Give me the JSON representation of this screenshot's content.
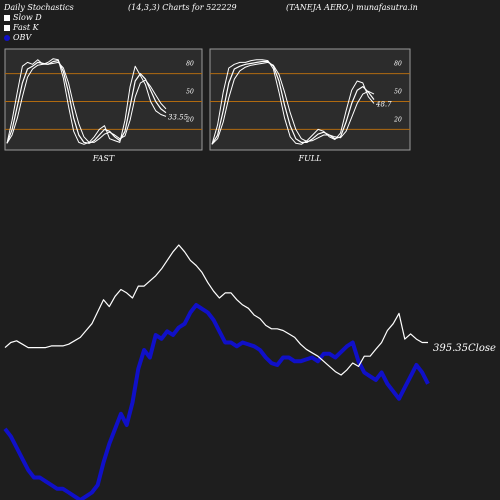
{
  "header": {
    "title": "Daily Stochastics",
    "params": "(14,3,3) Charts for 522229",
    "company": "(TANEJA AERO,) munafasutra.in"
  },
  "legend": [
    {
      "label": "Slow  D",
      "color": "#ffffff",
      "shape": "square"
    },
    {
      "label": "Fast K",
      "color": "#ffffff",
      "shape": "square"
    },
    {
      "label": "OBV",
      "color": "#1010c8",
      "shape": "circle"
    }
  ],
  "colors": {
    "background": "#1e1e1e",
    "panel": "#2c2c2c",
    "level_line": "#b06a10",
    "price": "#ffffff",
    "obv": "#1010c8"
  },
  "chart_data": [
    {
      "type": "line",
      "panel": "FAST",
      "title": "FAST",
      "ylim": [
        0,
        100
      ],
      "levels": [
        20,
        50,
        80
      ],
      "level_labels": [
        "20",
        "50",
        "80"
      ],
      "last_value_label": "33.55",
      "series": [
        {
          "values": [
            5,
            30,
            60,
            88,
            92,
            90,
            95,
            90,
            92,
            96,
            95,
            75,
            45,
            18,
            6,
            4,
            6,
            12,
            20,
            24,
            10,
            8,
            6,
            30,
            66,
            88,
            78,
            68,
            50,
            40,
            36,
            34
          ]
        },
        {
          "values": [
            5,
            20,
            45,
            70,
            85,
            88,
            92,
            91,
            90,
            93,
            94,
            82,
            60,
            32,
            14,
            6,
            5,
            8,
            14,
            20,
            18,
            12,
            8,
            18,
            45,
            72,
            80,
            74,
            62,
            50,
            42,
            38
          ]
        },
        {
          "values": [
            5,
            14,
            32,
            55,
            76,
            85,
            89,
            90,
            90,
            91,
            92,
            86,
            70,
            46,
            26,
            12,
            6,
            6,
            10,
            15,
            17,
            14,
            10,
            13,
            30,
            55,
            70,
            73,
            66,
            57,
            48,
            42
          ]
        }
      ]
    },
    {
      "type": "line",
      "panel": "FULL",
      "title": "FULL",
      "ylim": [
        0,
        100
      ],
      "levels": [
        20,
        50,
        80
      ],
      "level_labels": [
        "20",
        "50",
        "80"
      ],
      "last_value_label": "48.7",
      "series": [
        {
          "values": [
            4,
            25,
            60,
            86,
            90,
            92,
            92,
            94,
            95,
            95,
            94,
            85,
            60,
            32,
            12,
            5,
            4,
            8,
            14,
            20,
            18,
            12,
            9,
            16,
            40,
            62,
            72,
            70,
            55,
            48
          ]
        },
        {
          "values": [
            4,
            14,
            40,
            70,
            85,
            88,
            90,
            91,
            92,
            93,
            93,
            88,
            72,
            46,
            24,
            10,
            6,
            6,
            10,
            15,
            17,
            14,
            10,
            12,
            28,
            48,
            62,
            66,
            60,
            52
          ]
        },
        {
          "values": [
            4,
            10,
            28,
            54,
            74,
            83,
            87,
            89,
            90,
            91,
            92,
            89,
            79,
            60,
            38,
            20,
            10,
            7,
            8,
            11,
            14,
            14,
            12,
            11,
            18,
            33,
            48,
            58,
            61,
            58
          ]
        }
      ]
    },
    {
      "type": "line",
      "panel": "price_obv",
      "close_label": "395.35",
      "close_suffix": "Close",
      "series": [
        {
          "name": "Close",
          "values": [
            392,
            395,
            396,
            394,
            392,
            392,
            392,
            392,
            393,
            393,
            393,
            394,
            396,
            398,
            402,
            406,
            413,
            420,
            416,
            422,
            426,
            424,
            421,
            428,
            428,
            431,
            434,
            438,
            443,
            448,
            452,
            448,
            443,
            440,
            436,
            430,
            425,
            421,
            424,
            424,
            420,
            417,
            415,
            411,
            409,
            405,
            403,
            403,
            402,
            400,
            398,
            394,
            391,
            389,
            387,
            384,
            381,
            378,
            376,
            379,
            383,
            381,
            387,
            387,
            391,
            395,
            402,
            406,
            412,
            397,
            400,
            397,
            395,
            395
          ]
        },
        {
          "name": "OBV",
          "values": [
            -22,
            -26,
            -32,
            -38,
            -44,
            -48,
            -48,
            -50,
            -52,
            -54,
            -54,
            -56,
            -58,
            -60,
            -58,
            -56,
            -52,
            -40,
            -30,
            -22,
            -14,
            -20,
            -8,
            10,
            20,
            16,
            28,
            26,
            30,
            28,
            32,
            34,
            40,
            44,
            42,
            40,
            36,
            30,
            24,
            24,
            22,
            24,
            23,
            22,
            20,
            16,
            13,
            12,
            16,
            16,
            14,
            14,
            15,
            16,
            14,
            18,
            18,
            16,
            19,
            22,
            24,
            14,
            8,
            6,
            4,
            8,
            2,
            -2,
            -6,
            0,
            6,
            12,
            8,
            2
          ]
        }
      ]
    }
  ]
}
